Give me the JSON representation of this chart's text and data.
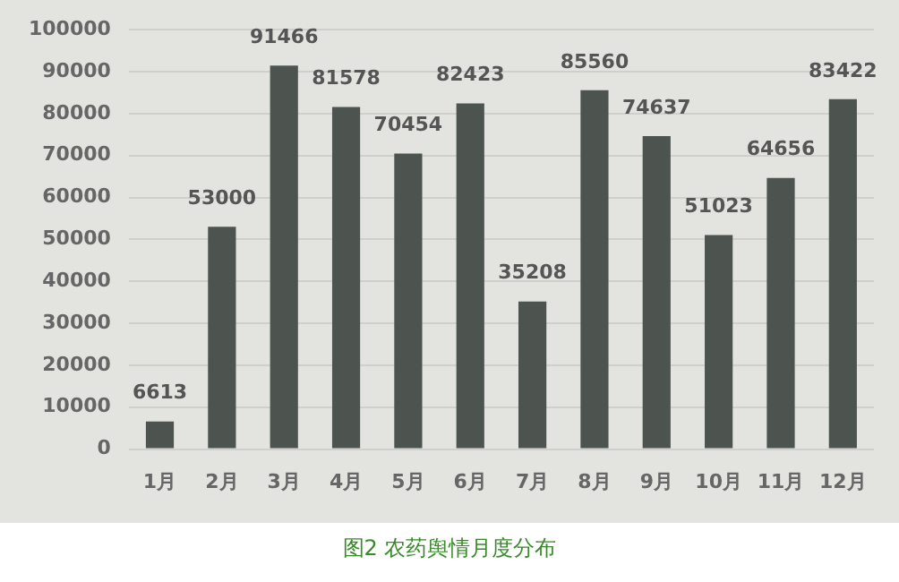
{
  "chart_data": {
    "type": "bar",
    "title": "图2 农药舆情月度分布",
    "categories": [
      "1月",
      "2月",
      "3月",
      "4月",
      "5月",
      "6月",
      "7月",
      "8月",
      "9月",
      "10月",
      "11月",
      "12月"
    ],
    "values": [
      6613,
      53000,
      91466,
      81578,
      70454,
      82423,
      35208,
      85560,
      74637,
      51023,
      64656,
      83422
    ],
    "color": "#4d544f",
    "ylim": [
      0,
      100000
    ],
    "yticks": [
      0,
      10000,
      20000,
      30000,
      40000,
      50000,
      60000,
      70000,
      80000,
      90000,
      100000
    ],
    "grid": "y",
    "legend": false,
    "data_labels": true
  }
}
